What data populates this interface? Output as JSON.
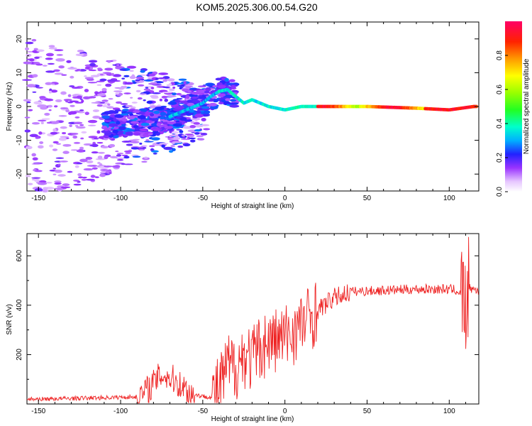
{
  "title": "KOM5.2025.306.00.54.G20",
  "chart_data": [
    {
      "type": "heatmap",
      "name": "spectrogram",
      "xlabel": "Height of straight line (km)",
      "ylabel": "Frequency (Hz)",
      "xlim": [
        -157,
        118
      ],
      "ylim": [
        -25,
        25
      ],
      "xticks": [
        -150,
        -100,
        -50,
        0,
        50,
        100
      ],
      "yticks": [
        -20,
        -10,
        0,
        10,
        20
      ],
      "colorbar": {
        "label": "Normalized spectral amplitude",
        "range": [
          0,
          1
        ],
        "ticks": [
          0.0,
          0.2,
          0.4,
          0.6,
          0.8
        ]
      },
      "ridge": {
        "description": "dominant frequency vs height",
        "x": [
          -80,
          -70,
          -60,
          -50,
          -45,
          -40,
          -35,
          -30,
          -25,
          -20,
          -10,
          0,
          10,
          20,
          50,
          80,
          100,
          115
        ],
        "y": [
          -5,
          -3,
          -1,
          1,
          3,
          4.5,
          5,
          3,
          1,
          2,
          0,
          -1,
          0,
          0,
          0,
          -0.5,
          -1,
          0
        ]
      }
    },
    {
      "type": "line",
      "name": "snr",
      "xlabel": "Height of straight line (km)",
      "ylabel": "SNR (v/v)",
      "xlim": [
        -157,
        118
      ],
      "ylim": [
        0,
        690
      ],
      "xticks": [
        -150,
        -100,
        -50,
        0,
        50,
        100
      ],
      "yticks": [
        200,
        400,
        600
      ],
      "color": "#ee2222",
      "envelope": {
        "x": [
          -157,
          -120,
          -90,
          -82,
          -75,
          -68,
          -60,
          -55,
          -50,
          -45,
          -40,
          -35,
          -30,
          -25,
          -20,
          -15,
          -10,
          -5,
          0,
          10,
          20,
          30,
          40,
          60,
          80,
          100,
          105,
          108,
          110,
          112,
          115,
          118
        ],
        "y": [
          10,
          15,
          20,
          70,
          120,
          100,
          60,
          30,
          20,
          20,
          60,
          150,
          150,
          200,
          180,
          230,
          250,
          260,
          270,
          320,
          380,
          430,
          455,
          460,
          465,
          465,
          460,
          430,
          350,
          470,
          465,
          460
        ]
      }
    }
  ]
}
